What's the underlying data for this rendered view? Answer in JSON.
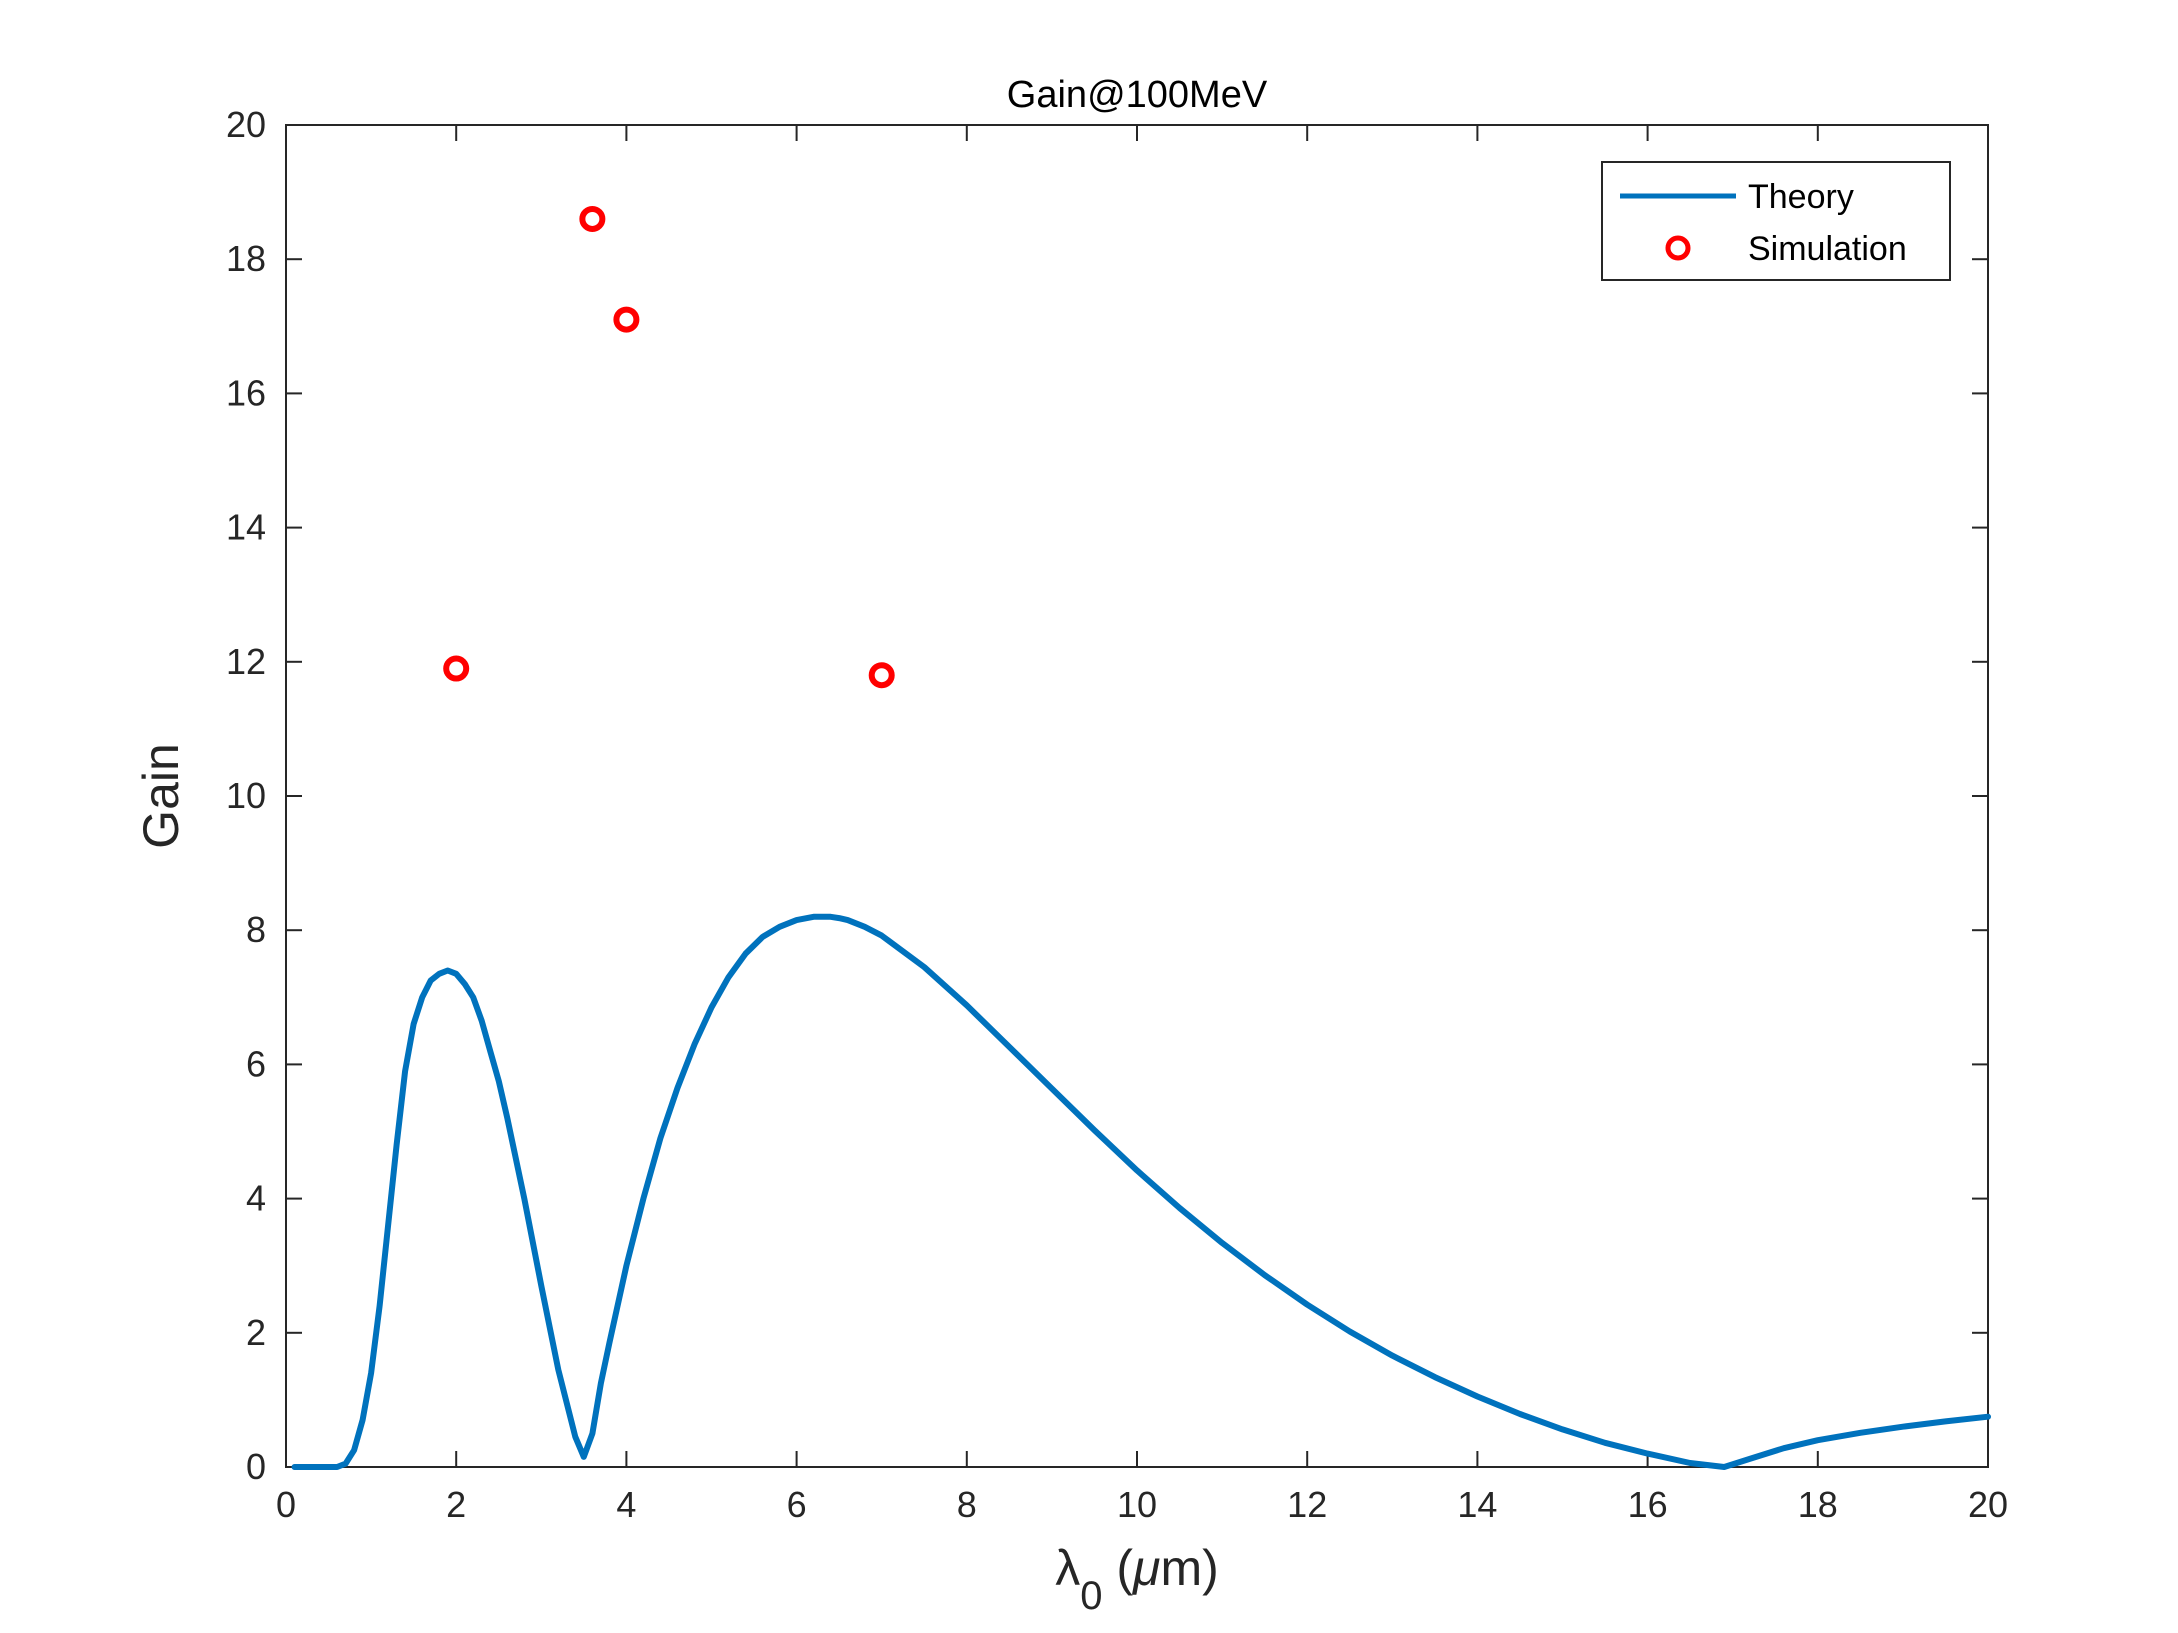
{
  "chart_data": {
    "type": "line",
    "title": "Gain@100MeV",
    "xlabel": {
      "symbol": "λ",
      "subscript": "0",
      "unit_open": " (",
      "unit_symbol": "μ",
      "unit_rest": "m)"
    },
    "ylabel": "Gain",
    "xlim": [
      0,
      20
    ],
    "ylim": [
      0,
      20
    ],
    "xticks": [
      "0",
      "2",
      "4",
      "6",
      "8",
      "10",
      "12",
      "14",
      "16",
      "18",
      "20"
    ],
    "yticks": [
      "0",
      "2",
      "4",
      "6",
      "8",
      "10",
      "12",
      "14",
      "16",
      "18",
      "20"
    ],
    "grid": false,
    "legend_position": "top-right",
    "series": [
      {
        "name": "Theory",
        "kind": "line",
        "color": "#0072BD",
        "x": [
          0.1,
          0.3,
          0.5,
          0.6,
          0.7,
          0.8,
          0.9,
          1.0,
          1.1,
          1.2,
          1.3,
          1.4,
          1.5,
          1.6,
          1.7,
          1.8,
          1.9,
          2.0,
          2.1,
          2.2,
          2.3,
          2.4,
          2.5,
          2.6,
          2.8,
          3.0,
          3.2,
          3.4,
          3.5,
          3.6,
          3.7,
          3.8,
          4.0,
          4.2,
          4.4,
          4.6,
          4.8,
          5.0,
          5.2,
          5.4,
          5.6,
          5.8,
          6.0,
          6.2,
          6.4,
          6.5,
          6.6,
          6.8,
          7.0,
          7.5,
          8.0,
          8.5,
          9.0,
          9.5,
          10.0,
          10.5,
          11.0,
          11.5,
          12.0,
          12.5,
          13.0,
          13.5,
          14.0,
          14.5,
          15.0,
          15.5,
          16.0,
          16.5,
          16.9,
          17.2,
          17.6,
          18.0,
          18.5,
          19.0,
          19.5,
          20.0
        ],
        "y": [
          0,
          0,
          0,
          0,
          0.05,
          0.25,
          0.7,
          1.4,
          2.4,
          3.6,
          4.8,
          5.9,
          6.6,
          7.0,
          7.25,
          7.35,
          7.4,
          7.35,
          7.2,
          7.0,
          6.65,
          6.2,
          5.75,
          5.2,
          4.0,
          2.7,
          1.45,
          0.45,
          0.15,
          0.5,
          1.25,
          1.85,
          3.0,
          4.0,
          4.9,
          5.65,
          6.3,
          6.85,
          7.3,
          7.65,
          7.9,
          8.05,
          8.15,
          8.2,
          8.2,
          8.18,
          8.15,
          8.05,
          7.92,
          7.45,
          6.88,
          6.26,
          5.64,
          5.02,
          4.42,
          3.86,
          3.34,
          2.86,
          2.42,
          2.02,
          1.66,
          1.34,
          1.05,
          0.79,
          0.56,
          0.36,
          0.2,
          0.06,
          0.0,
          0.12,
          0.28,
          0.4,
          0.51,
          0.6,
          0.68,
          0.75
        ]
      },
      {
        "name": "Simulation",
        "kind": "scatter",
        "marker": "circle-open",
        "color": "#FF0000",
        "x": [
          2.0,
          3.6,
          4.0,
          7.0
        ],
        "y": [
          11.9,
          18.6,
          17.1,
          11.8
        ]
      }
    ]
  }
}
